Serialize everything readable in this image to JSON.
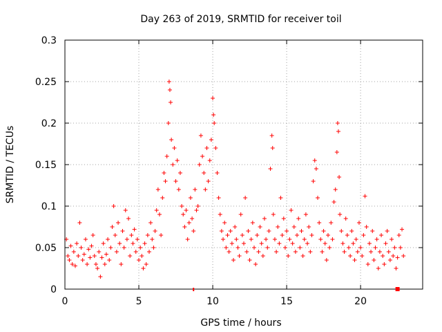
{
  "chart_data": {
    "type": "scatter",
    "title": "Day 263 of 2019, SRMTID for receiver toil",
    "xlabel": "GPS time / hours",
    "ylabel": "SRMTID / TECUs",
    "xlim": [
      0,
      24.2
    ],
    "ylim": [
      0,
      0.3
    ],
    "xticks": [
      0,
      5,
      10,
      15,
      20
    ],
    "xtick_labels": [
      "0",
      "5",
      "10",
      "15",
      "20"
    ],
    "yticks": [
      0,
      0.05,
      0.1,
      0.15,
      0.2,
      0.25,
      0.3
    ],
    "ytick_labels": [
      "0",
      "0.05",
      "0.1",
      "0.15",
      "0.2",
      "0.25",
      "0.3"
    ],
    "grid": true,
    "marker": "plus",
    "color": "#ff0000",
    "series": [
      {
        "name": "SRMTID",
        "points": [
          [
            0.1,
            0.06
          ],
          [
            0.2,
            0.04
          ],
          [
            0.3,
            0.035
          ],
          [
            0.4,
            0.052
          ],
          [
            0.5,
            0.03
          ],
          [
            0.6,
            0.045
          ],
          [
            0.7,
            0.028
          ],
          [
            0.8,
            0.055
          ],
          [
            0.9,
            0.04
          ],
          [
            1.0,
            0.08
          ],
          [
            1.1,
            0.05
          ],
          [
            1.2,
            0.035
          ],
          [
            1.3,
            0.042
          ],
          [
            1.4,
            0.06
          ],
          [
            1.5,
            0.03
          ],
          [
            1.6,
            0.048
          ],
          [
            1.7,
            0.038
          ],
          [
            1.8,
            0.052
          ],
          [
            1.9,
            0.065
          ],
          [
            2.0,
            0.04
          ],
          [
            2.1,
            0.03
          ],
          [
            2.2,
            0.025
          ],
          [
            2.3,
            0.045
          ],
          [
            2.4,
            0.015
          ],
          [
            2.5,
            0.038
          ],
          [
            2.6,
            0.055
          ],
          [
            2.7,
            0.03
          ],
          [
            2.8,
            0.042
          ],
          [
            2.9,
            0.06
          ],
          [
            3.0,
            0.035
          ],
          [
            3.1,
            0.05
          ],
          [
            3.2,
            0.075
          ],
          [
            3.3,
            0.1
          ],
          [
            3.4,
            0.065
          ],
          [
            3.5,
            0.045
          ],
          [
            3.6,
            0.08
          ],
          [
            3.7,
            0.055
          ],
          [
            3.8,
            0.03
          ],
          [
            3.9,
            0.07
          ],
          [
            4.0,
            0.05
          ],
          [
            4.1,
            0.095
          ],
          [
            4.2,
            0.06
          ],
          [
            4.3,
            0.085
          ],
          [
            4.4,
            0.04
          ],
          [
            4.5,
            0.065
          ],
          [
            4.6,
            0.055
          ],
          [
            4.7,
            0.072
          ],
          [
            4.8,
            0.045
          ],
          [
            4.9,
            0.06
          ],
          [
            5.0,
            0.035
          ],
          [
            5.1,
            0.05
          ],
          [
            5.2,
            0.04
          ],
          [
            5.3,
            0.025
          ],
          [
            5.4,
            0.055
          ],
          [
            5.5,
            0.03
          ],
          [
            5.6,
            0.065
          ],
          [
            5.7,
            0.045
          ],
          [
            5.8,
            0.08
          ],
          [
            5.9,
            0.06
          ],
          [
            6.0,
            0.05
          ],
          [
            6.1,
            0.07
          ],
          [
            6.2,
            0.095
          ],
          [
            6.3,
            0.12
          ],
          [
            6.4,
            0.09
          ],
          [
            6.5,
            0.065
          ],
          [
            6.6,
            0.11
          ],
          [
            6.7,
            0.14
          ],
          [
            6.8,
            0.13
          ],
          [
            6.9,
            0.16
          ],
          [
            7.0,
            0.2
          ],
          [
            7.05,
            0.25
          ],
          [
            7.1,
            0.24
          ],
          [
            7.15,
            0.225
          ],
          [
            7.2,
            0.18
          ],
          [
            7.3,
            0.15
          ],
          [
            7.4,
            0.17
          ],
          [
            7.5,
            0.13
          ],
          [
            7.6,
            0.155
          ],
          [
            7.7,
            0.12
          ],
          [
            7.8,
            0.14
          ],
          [
            7.9,
            0.1
          ],
          [
            8.0,
            0.09
          ],
          [
            8.1,
            0.075
          ],
          [
            8.2,
            0.095
          ],
          [
            8.3,
            0.06
          ],
          [
            8.4,
            0.08
          ],
          [
            8.5,
            0.11
          ],
          [
            8.6,
            0.085
          ],
          [
            8.7,
            0.07
          ],
          [
            8.8,
            0.12
          ],
          [
            8.9,
            0.095
          ],
          [
            9.0,
            0.1
          ],
          [
            9.1,
            0.15
          ],
          [
            9.2,
            0.185
          ],
          [
            9.3,
            0.16
          ],
          [
            9.4,
            0.14
          ],
          [
            9.5,
            0.12
          ],
          [
            9.6,
            0.17
          ],
          [
            9.7,
            0.13
          ],
          [
            9.8,
            0.155
          ],
          [
            9.9,
            0.18
          ],
          [
            10.0,
            0.23
          ],
          [
            10.05,
            0.21
          ],
          [
            10.1,
            0.2
          ],
          [
            10.2,
            0.17
          ],
          [
            10.3,
            0.14
          ],
          [
            10.4,
            0.11
          ],
          [
            10.5,
            0.09
          ],
          [
            10.6,
            0.07
          ],
          [
            10.7,
            0.06
          ],
          [
            10.8,
            0.08
          ],
          [
            10.9,
            0.05
          ],
          [
            11.0,
            0.065
          ],
          [
            11.1,
            0.045
          ],
          [
            11.2,
            0.07
          ],
          [
            11.3,
            0.055
          ],
          [
            11.4,
            0.035
          ],
          [
            11.5,
            0.075
          ],
          [
            11.6,
            0.06
          ],
          [
            11.7,
            0.05
          ],
          [
            11.8,
            0.04
          ],
          [
            11.9,
            0.09
          ],
          [
            12.0,
            0.065
          ],
          [
            12.1,
            0.055
          ],
          [
            12.2,
            0.11
          ],
          [
            12.3,
            0.045
          ],
          [
            12.4,
            0.07
          ],
          [
            12.5,
            0.035
          ],
          [
            12.6,
            0.06
          ],
          [
            12.7,
            0.08
          ],
          [
            12.8,
            0.05
          ],
          [
            12.9,
            0.03
          ],
          [
            13.0,
            0.065
          ],
          [
            13.1,
            0.045
          ],
          [
            13.2,
            0.075
          ],
          [
            13.3,
            0.055
          ],
          [
            13.4,
            0.04
          ],
          [
            13.5,
            0.085
          ],
          [
            13.6,
            0.06
          ],
          [
            13.7,
            0.05
          ],
          [
            13.8,
            0.07
          ],
          [
            13.9,
            0.145
          ],
          [
            14.0,
            0.185
          ],
          [
            14.05,
            0.17
          ],
          [
            14.1,
            0.09
          ],
          [
            14.2,
            0.06
          ],
          [
            14.3,
            0.045
          ],
          [
            14.4,
            0.075
          ],
          [
            14.5,
            0.055
          ],
          [
            14.6,
            0.11
          ],
          [
            14.7,
            0.065
          ],
          [
            14.8,
            0.085
          ],
          [
            14.9,
            0.05
          ],
          [
            15.0,
            0.07
          ],
          [
            15.1,
            0.04
          ],
          [
            15.2,
            0.06
          ],
          [
            15.3,
            0.095
          ],
          [
            15.4,
            0.055
          ],
          [
            15.5,
            0.075
          ],
          [
            15.6,
            0.045
          ],
          [
            15.7,
            0.065
          ],
          [
            15.8,
            0.085
          ],
          [
            15.9,
            0.05
          ],
          [
            16.0,
            0.07
          ],
          [
            16.1,
            0.04
          ],
          [
            16.2,
            0.06
          ],
          [
            16.3,
            0.09
          ],
          [
            16.4,
            0.055
          ],
          [
            16.5,
            0.075
          ],
          [
            16.6,
            0.045
          ],
          [
            16.7,
            0.065
          ],
          [
            16.8,
            0.13
          ],
          [
            16.9,
            0.155
          ],
          [
            17.0,
            0.145
          ],
          [
            17.1,
            0.11
          ],
          [
            17.2,
            0.08
          ],
          [
            17.3,
            0.06
          ],
          [
            17.4,
            0.045
          ],
          [
            17.5,
            0.07
          ],
          [
            17.6,
            0.055
          ],
          [
            17.7,
            0.035
          ],
          [
            17.8,
            0.065
          ],
          [
            17.9,
            0.05
          ],
          [
            18.0,
            0.08
          ],
          [
            18.1,
            0.06
          ],
          [
            18.2,
            0.105
          ],
          [
            18.3,
            0.12
          ],
          [
            18.4,
            0.165
          ],
          [
            18.45,
            0.2
          ],
          [
            18.5,
            0.19
          ],
          [
            18.55,
            0.135
          ],
          [
            18.6,
            0.09
          ],
          [
            18.7,
            0.07
          ],
          [
            18.8,
            0.055
          ],
          [
            18.9,
            0.045
          ],
          [
            19.0,
            0.085
          ],
          [
            19.1,
            0.065
          ],
          [
            19.2,
            0.05
          ],
          [
            19.3,
            0.04
          ],
          [
            19.4,
            0.07
          ],
          [
            19.5,
            0.055
          ],
          [
            19.6,
            0.035
          ],
          [
            19.7,
            0.06
          ],
          [
            19.8,
            0.045
          ],
          [
            19.9,
            0.08
          ],
          [
            20.0,
            0.05
          ],
          [
            20.1,
            0.04
          ],
          [
            20.2,
            0.065
          ],
          [
            20.3,
            0.112
          ],
          [
            20.4,
            0.075
          ],
          [
            20.5,
            0.03
          ],
          [
            20.6,
            0.055
          ],
          [
            20.7,
            0.045
          ],
          [
            20.8,
            0.07
          ],
          [
            20.9,
            0.035
          ],
          [
            21.0,
            0.05
          ],
          [
            21.1,
            0.06
          ],
          [
            21.2,
            0.025
          ],
          [
            21.3,
            0.045
          ],
          [
            21.4,
            0.065
          ],
          [
            21.5,
            0.04
          ],
          [
            21.6,
            0.03
          ],
          [
            21.7,
            0.055
          ],
          [
            21.8,
            0.07
          ],
          [
            21.9,
            0.045
          ],
          [
            22.0,
            0.035
          ],
          [
            22.1,
            0.06
          ],
          [
            22.2,
            0.04
          ],
          [
            22.3,
            0.05
          ],
          [
            22.4,
            0.025
          ],
          [
            22.5,
            0.038
          ],
          [
            22.6,
            0.065
          ],
          [
            22.7,
            0.05
          ],
          [
            22.8,
            0.072
          ],
          [
            22.9,
            0.04
          ]
        ]
      }
    ],
    "axis_markers_x": [
      8.7,
      22.5
    ]
  }
}
